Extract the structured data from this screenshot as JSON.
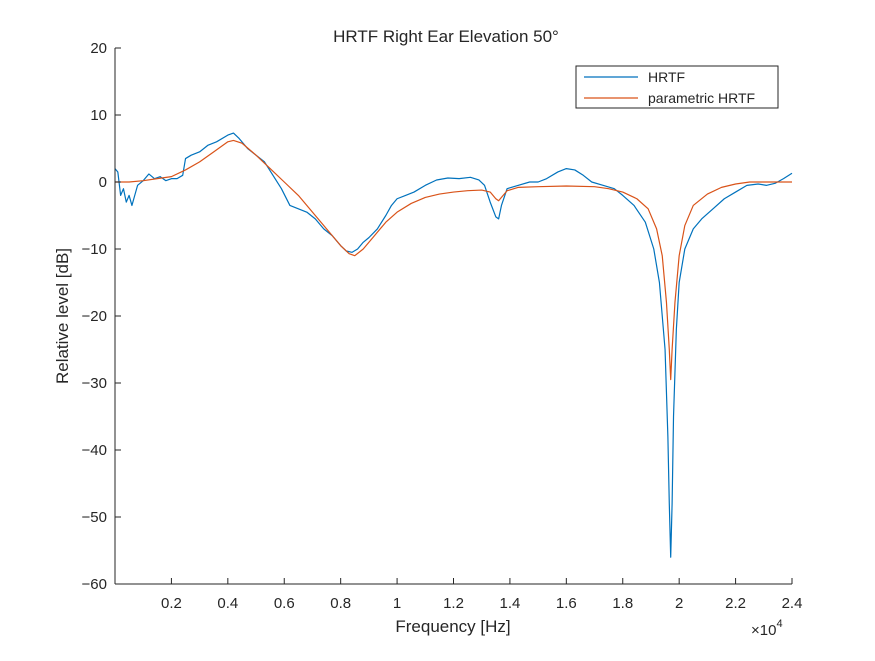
{
  "chart_data": {
    "type": "line",
    "title": "HRTF Right Ear Elevation 50°",
    "xlabel": "Frequency [Hz]",
    "ylabel": "Relative level [dB]",
    "x_exponent_label": "×10",
    "x_exponent_power": "4",
    "xlim": [
      0,
      24000
    ],
    "ylim": [
      -60,
      20
    ],
    "xticks": [
      2000,
      4000,
      6000,
      8000,
      10000,
      12000,
      14000,
      16000,
      18000,
      20000,
      22000,
      24000
    ],
    "xtick_labels": [
      "0.2",
      "0.4",
      "0.6",
      "0.8",
      "1",
      "1.2",
      "1.4",
      "1.6",
      "1.8",
      "2",
      "2.2",
      "2.4"
    ],
    "yticks": [
      -60,
      -50,
      -40,
      -30,
      -20,
      -10,
      0,
      10,
      20
    ],
    "ytick_labels": [
      "−60",
      "−50",
      "−40",
      "−30",
      "−20",
      "−10",
      "0",
      "10",
      "20"
    ],
    "grid": false,
    "legend_position": "top-right",
    "series": [
      {
        "name": "HRTF",
        "color": "#0072BD",
        "points": [
          [
            0,
            2
          ],
          [
            100,
            1.5
          ],
          [
            200,
            -2
          ],
          [
            300,
            -1
          ],
          [
            400,
            -3
          ],
          [
            500,
            -2
          ],
          [
            600,
            -3.5
          ],
          [
            700,
            -2
          ],
          [
            800,
            -0.5
          ],
          [
            1000,
            0.2
          ],
          [
            1200,
            1.2
          ],
          [
            1400,
            0.5
          ],
          [
            1600,
            0.8
          ],
          [
            1800,
            0.2
          ],
          [
            2000,
            0.5
          ],
          [
            2200,
            0.5
          ],
          [
            2400,
            1
          ],
          [
            2500,
            3.5
          ],
          [
            2700,
            4
          ],
          [
            3000,
            4.5
          ],
          [
            3300,
            5.5
          ],
          [
            3600,
            6
          ],
          [
            4000,
            7
          ],
          [
            4200,
            7.3
          ],
          [
            4400,
            6.5
          ],
          [
            4700,
            5
          ],
          [
            5000,
            4
          ],
          [
            5300,
            3
          ],
          [
            5600,
            1
          ],
          [
            5900,
            -1
          ],
          [
            6200,
            -3.5
          ],
          [
            6500,
            -4
          ],
          [
            6800,
            -4.5
          ],
          [
            7100,
            -5.5
          ],
          [
            7400,
            -7
          ],
          [
            7700,
            -8
          ],
          [
            8000,
            -9.5
          ],
          [
            8200,
            -10.3
          ],
          [
            8400,
            -10.5
          ],
          [
            8600,
            -10
          ],
          [
            8800,
            -9
          ],
          [
            9000,
            -8.3
          ],
          [
            9300,
            -7
          ],
          [
            9600,
            -5
          ],
          [
            9800,
            -3.5
          ],
          [
            10000,
            -2.5
          ],
          [
            10300,
            -2
          ],
          [
            10600,
            -1.5
          ],
          [
            11000,
            -0.5
          ],
          [
            11400,
            0.3
          ],
          [
            11800,
            0.6
          ],
          [
            12200,
            0.5
          ],
          [
            12600,
            0.7
          ],
          [
            12900,
            0.3
          ],
          [
            13100,
            -0.5
          ],
          [
            13300,
            -3
          ],
          [
            13500,
            -5.2
          ],
          [
            13600,
            -5.5
          ],
          [
            13700,
            -3.5
          ],
          [
            13900,
            -1
          ],
          [
            14300,
            -0.5
          ],
          [
            14700,
            0
          ],
          [
            15000,
            0
          ],
          [
            15300,
            0.5
          ],
          [
            15700,
            1.5
          ],
          [
            16000,
            2
          ],
          [
            16300,
            1.8
          ],
          [
            16600,
            1
          ],
          [
            16900,
            0
          ],
          [
            17300,
            -0.5
          ],
          [
            17700,
            -1
          ],
          [
            18000,
            -2
          ],
          [
            18400,
            -3.5
          ],
          [
            18800,
            -6
          ],
          [
            19100,
            -10
          ],
          [
            19300,
            -15
          ],
          [
            19500,
            -25
          ],
          [
            19600,
            -38
          ],
          [
            19650,
            -48
          ],
          [
            19700,
            -56
          ],
          [
            19750,
            -48
          ],
          [
            19800,
            -35
          ],
          [
            19900,
            -22
          ],
          [
            20000,
            -15
          ],
          [
            20200,
            -10
          ],
          [
            20500,
            -7
          ],
          [
            20800,
            -5.5
          ],
          [
            21200,
            -4
          ],
          [
            21600,
            -2.5
          ],
          [
            22000,
            -1.5
          ],
          [
            22400,
            -0.5
          ],
          [
            22800,
            -0.3
          ],
          [
            23100,
            -0.5
          ],
          [
            23400,
            -0.2
          ],
          [
            23700,
            0.5
          ],
          [
            24000,
            1.3
          ]
        ]
      },
      {
        "name": "parametric HRTF",
        "color": "#D95319",
        "points": [
          [
            0,
            0
          ],
          [
            500,
            0
          ],
          [
            1000,
            0.2
          ],
          [
            1500,
            0.5
          ],
          [
            2000,
            0.8
          ],
          [
            2500,
            1.8
          ],
          [
            3000,
            3
          ],
          [
            3500,
            4.5
          ],
          [
            4000,
            6
          ],
          [
            4200,
            6.2
          ],
          [
            4500,
            5.8
          ],
          [
            5000,
            4
          ],
          [
            5500,
            2
          ],
          [
            6000,
            0
          ],
          [
            6500,
            -2
          ],
          [
            7000,
            -4.5
          ],
          [
            7500,
            -7
          ],
          [
            8000,
            -9.5
          ],
          [
            8300,
            -10.7
          ],
          [
            8500,
            -11
          ],
          [
            8800,
            -10
          ],
          [
            9200,
            -8
          ],
          [
            9600,
            -6
          ],
          [
            10000,
            -4.5
          ],
          [
            10500,
            -3.2
          ],
          [
            11000,
            -2.3
          ],
          [
            11500,
            -1.8
          ],
          [
            12000,
            -1.5
          ],
          [
            12500,
            -1.3
          ],
          [
            13000,
            -1.2
          ],
          [
            13300,
            -1.5
          ],
          [
            13500,
            -2.5
          ],
          [
            13600,
            -2.8
          ],
          [
            13700,
            -2.3
          ],
          [
            13900,
            -1.3
          ],
          [
            14300,
            -0.8
          ],
          [
            15000,
            -0.7
          ],
          [
            16000,
            -0.6
          ],
          [
            17000,
            -0.7
          ],
          [
            17500,
            -1
          ],
          [
            18000,
            -1.5
          ],
          [
            18500,
            -2.5
          ],
          [
            18900,
            -4
          ],
          [
            19200,
            -7
          ],
          [
            19400,
            -11
          ],
          [
            19550,
            -18
          ],
          [
            19650,
            -25
          ],
          [
            19700,
            -29.5
          ],
          [
            19750,
            -25
          ],
          [
            19850,
            -18
          ],
          [
            20000,
            -11
          ],
          [
            20200,
            -6.5
          ],
          [
            20500,
            -3.5
          ],
          [
            21000,
            -1.8
          ],
          [
            21500,
            -0.8
          ],
          [
            22000,
            -0.3
          ],
          [
            22500,
            0
          ],
          [
            23000,
            0
          ],
          [
            23500,
            0
          ],
          [
            24000,
            0
          ]
        ]
      }
    ]
  }
}
